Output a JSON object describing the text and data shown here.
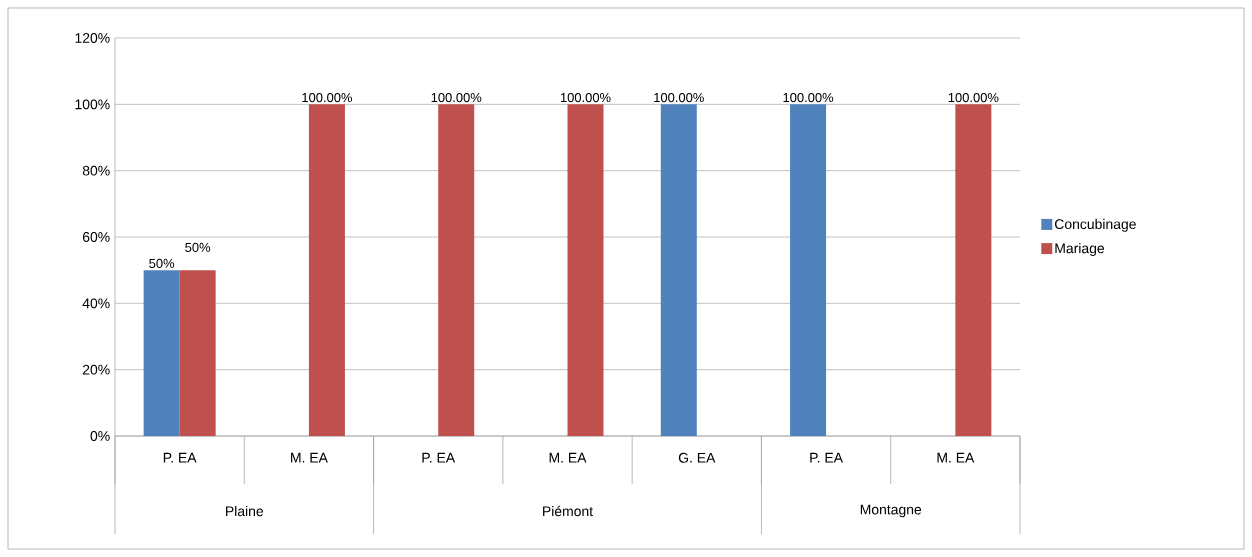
{
  "chart_data": {
    "type": "bar",
    "categories": [
      "P. EA",
      "M. EA",
      "P. EA",
      "M. EA",
      "G. EA",
      "P. EA",
      "M. EA"
    ],
    "annotations": [
      "Plaine",
      "Piémont",
      "Montagne"
    ],
    "series": [
      {
        "name": "Concubinage",
        "color": "#4f81bd",
        "values": [
          50,
          null,
          null,
          null,
          100,
          100,
          null
        ],
        "value_labels": [
          "50%",
          null,
          null,
          null,
          "100.00%",
          "100.00%",
          null
        ]
      },
      {
        "name": "Mariage",
        "color": "#c0504d",
        "values": [
          50,
          100,
          100,
          100,
          null,
          null,
          100
        ],
        "value_labels": [
          "50%",
          "100.00%",
          "100.00%",
          "100.00%",
          null,
          null,
          "100.00%"
        ]
      }
    ],
    "ylim": [
      0,
      120
    ],
    "yticks": [
      {
        "value": 0,
        "label": "0%"
      },
      {
        "value": 20,
        "label": "20%"
      },
      {
        "value": 40,
        "label": "40%"
      },
      {
        "value": 60,
        "label": "60%"
      },
      {
        "value": 80,
        "label": "80%"
      },
      {
        "value": 100,
        "label": "100%"
      },
      {
        "value": 120,
        "label": "120%"
      }
    ],
    "grid": "y",
    "legend": "right"
  }
}
